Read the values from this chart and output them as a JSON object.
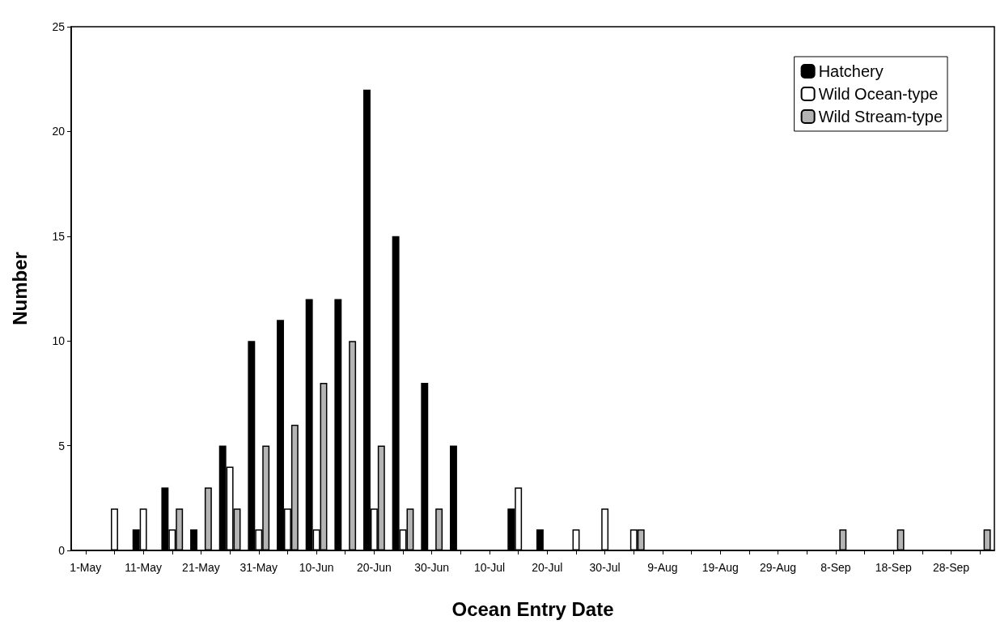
{
  "chart_data": {
    "type": "bar",
    "xlabel": "Ocean Entry Date",
    "ylabel": "Number",
    "categories": [
      "1-May",
      null,
      "11-May",
      null,
      "21-May",
      null,
      "31-May",
      null,
      "10-Jun",
      null,
      "20-Jun",
      null,
      "30-Jun",
      null,
      "10-Jul",
      null,
      "20-Jul",
      null,
      "30-Jul",
      null,
      "9-Aug",
      null,
      "19-Aug",
      null,
      "29-Aug",
      null,
      "8-Sep",
      null,
      "18-Sep",
      null,
      "28-Sep",
      null
    ],
    "series": [
      {
        "name": "Hatchery",
        "color": "#000000",
        "values": [
          null,
          null,
          1,
          3,
          1,
          5,
          10,
          11,
          12,
          12,
          22,
          15,
          8,
          5,
          null,
          2,
          1,
          null,
          null,
          null,
          null,
          null,
          null,
          null,
          null,
          null,
          null,
          null,
          null,
          null,
          null,
          null
        ]
      },
      {
        "name": "Wild Ocean-type",
        "color": "#ffffff",
        "values": [
          null,
          2,
          2,
          1,
          null,
          4,
          1,
          2,
          1,
          null,
          2,
          1,
          null,
          null,
          null,
          3,
          null,
          1,
          2,
          1,
          null,
          null,
          null,
          null,
          null,
          null,
          null,
          null,
          null,
          null,
          null,
          null
        ]
      },
      {
        "name": "Wild Stream-type",
        "color": "#b4b4b4",
        "values": [
          null,
          null,
          null,
          2,
          3,
          2,
          5,
          6,
          8,
          10,
          5,
          2,
          2,
          null,
          null,
          null,
          null,
          null,
          null,
          1,
          null,
          null,
          null,
          null,
          null,
          null,
          1,
          null,
          1,
          null,
          null,
          1
        ]
      }
    ],
    "ylim": [
      0,
      25
    ],
    "yticks": [
      0,
      5,
      10,
      15,
      20,
      25
    ],
    "grid": false,
    "legend": "top right"
  }
}
